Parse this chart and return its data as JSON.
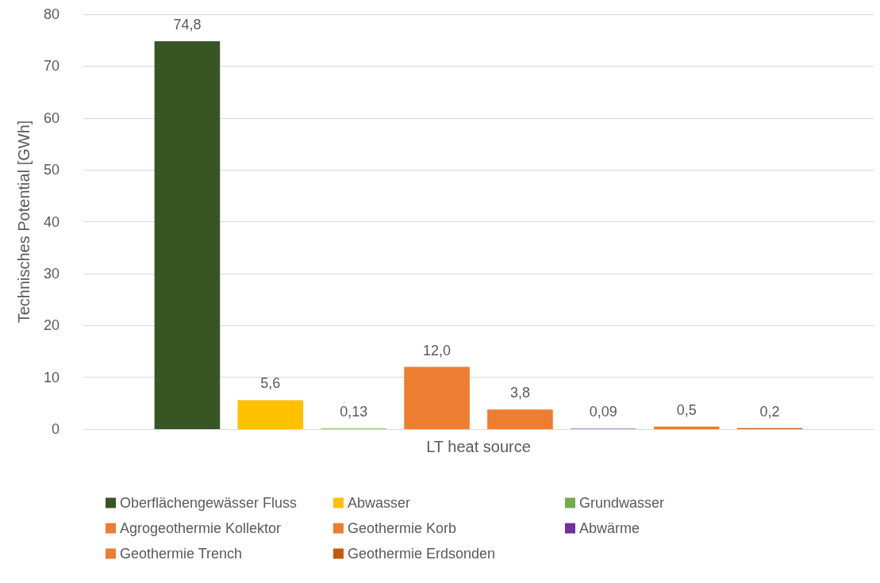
{
  "chart_data": {
    "type": "bar",
    "ylabel": "Technisches Potential [GWh]",
    "categories": [
      "LT heat source"
    ],
    "series": [
      {
        "name": "Oberflächengewässer Fluss",
        "color": "#375623",
        "values": [
          74.8
        ],
        "value_labels": [
          "74,8"
        ]
      },
      {
        "name": "Abwasser",
        "color": "#ffc000",
        "values": [
          5.6
        ],
        "value_labels": [
          "5,6"
        ]
      },
      {
        "name": "Grundwasser",
        "color": "#70ad47",
        "values": [
          0.13
        ],
        "value_labels": [
          "0,13"
        ]
      },
      {
        "name": "Agrogeothermie Kollektor",
        "color": "#ed7d31",
        "values": [
          12.0
        ],
        "value_labels": [
          "12,0"
        ]
      },
      {
        "name": "Geothermie Korb",
        "color": "#ed7d31",
        "values": [
          3.8
        ],
        "value_labels": [
          "3,8"
        ]
      },
      {
        "name": "Abwärme",
        "color": "#7030a0",
        "values": [
          0.09
        ],
        "value_labels": [
          "0,09"
        ]
      },
      {
        "name": "Geothermie Trench",
        "color": "#ed7d31",
        "values": [
          0.5
        ],
        "value_labels": [
          "0,5"
        ]
      },
      {
        "name": "Geothermie Erdsonden",
        "color": "#c55a11",
        "values": [
          0.2
        ],
        "value_labels": [
          "0,2"
        ]
      }
    ],
    "ylim": [
      0,
      80
    ],
    "yticks": [
      0,
      10,
      20,
      30,
      40,
      50,
      60,
      70,
      80
    ],
    "grid": "y",
    "legend": "bottom"
  }
}
